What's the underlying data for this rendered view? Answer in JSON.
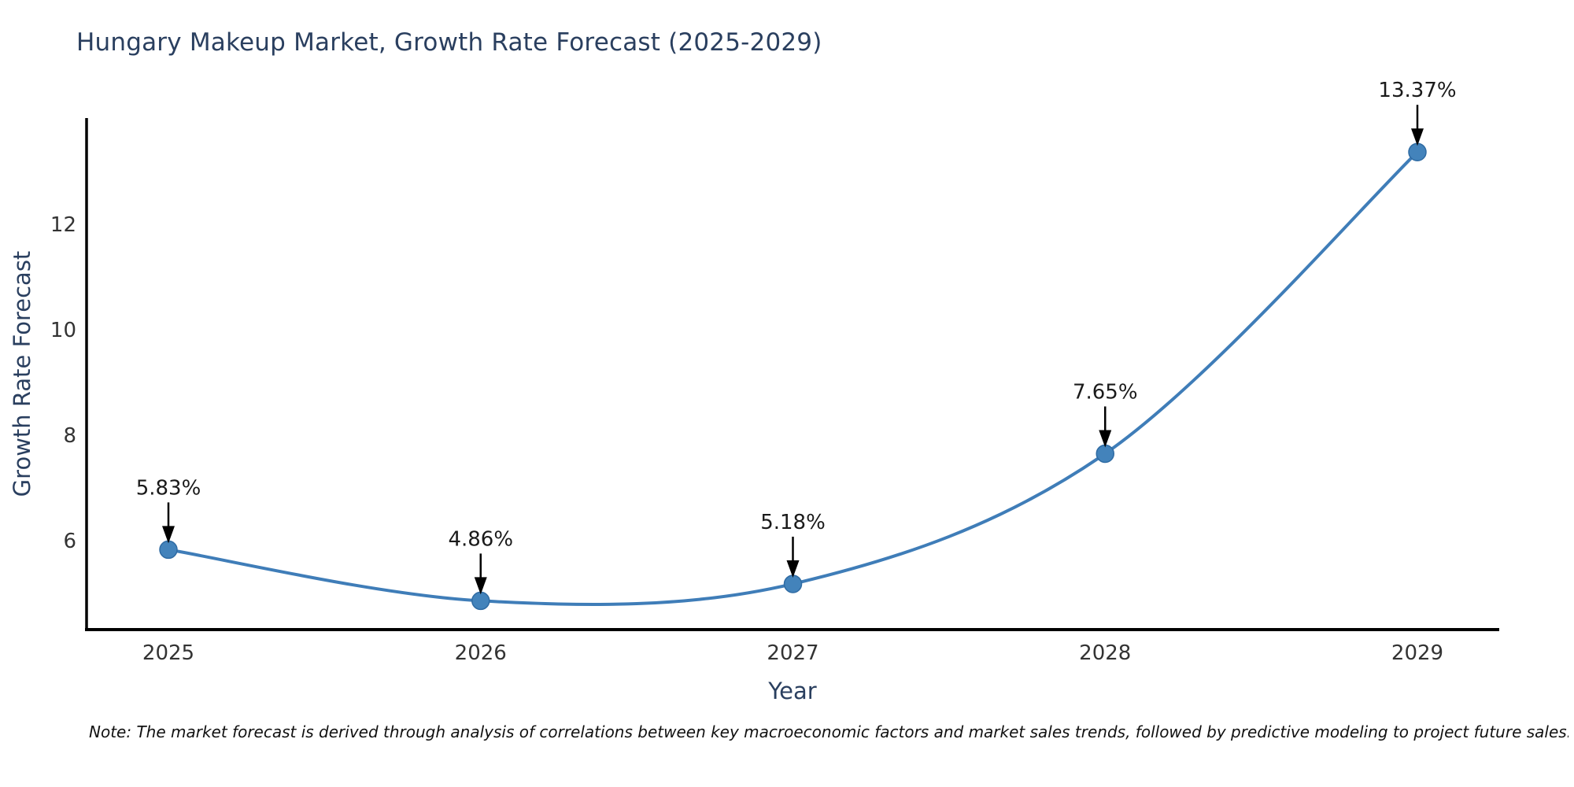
{
  "title": "Hungary Makeup Market, Growth Rate Forecast (2025-2029)",
  "note": "Note: The market forecast is derived through analysis of correlations between key macroeconomic factors and market sales trends, followed by predictive modeling to project future sales.",
  "colors": {
    "title_color": "#2a3f5f",
    "tick_color": "#333333",
    "annotation_color": "#1a1a1a",
    "note_color": "#111111",
    "axis_color": "#000000",
    "line_color": "#3f7db8",
    "marker_color": "#4383bb",
    "marker_edge_color": "#2f6ba3",
    "arrow_color": "#000000"
  },
  "chart_data": {
    "type": "line",
    "title": "Hungary Makeup Market, Growth Rate Forecast (2025-2029)",
    "xlabel": "Year",
    "ylabel": "Growth Rate Forecast",
    "categories": [
      "2025",
      "2026",
      "2027",
      "2028",
      "2029"
    ],
    "values": [
      5.83,
      4.86,
      5.18,
      7.65,
      13.37
    ],
    "point_labels": [
      "5.83%",
      "4.86%",
      "5.18%",
      "7.65%",
      "13.37%"
    ],
    "yticks": [
      6,
      8,
      10,
      12
    ],
    "ylim": [
      4.3,
      14.0
    ],
    "grid": false,
    "legend_position": "none",
    "curve": "smooth",
    "annotations": "value labels with downward black arrows above each point",
    "spines": "left and bottom only, black"
  }
}
